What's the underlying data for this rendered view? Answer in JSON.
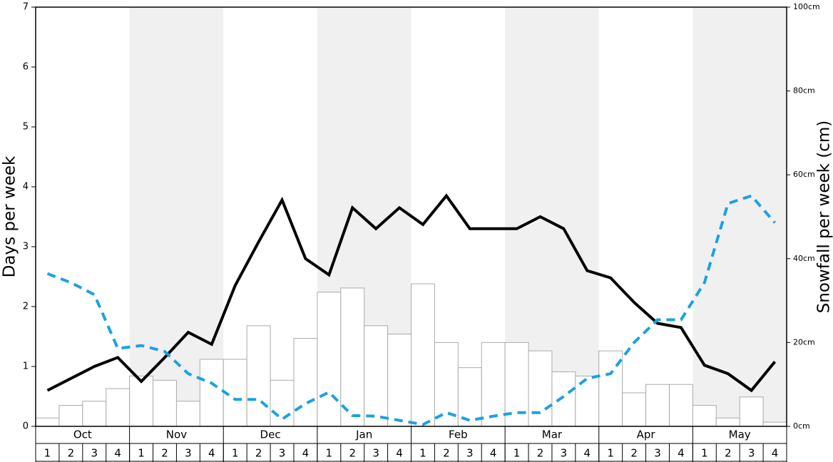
{
  "chart_data": {
    "type": "combo",
    "ylabel": "Days per week",
    "y2label": "Snowfall per week (cm)",
    "months": [
      "Oct",
      "Nov",
      "Dec",
      "Jan",
      "Feb",
      "Mar",
      "Apr",
      "May"
    ],
    "categories": [
      1,
      2,
      3,
      4,
      1,
      2,
      3,
      4,
      1,
      2,
      3,
      4,
      1,
      2,
      3,
      4,
      1,
      2,
      3,
      4,
      1,
      2,
      3,
      4,
      1,
      2,
      3,
      4,
      1,
      2,
      3,
      4
    ],
    "ylim": [
      0,
      7
    ],
    "yticks": [
      0,
      1,
      2,
      3,
      4,
      5,
      6,
      7
    ],
    "y2lim": [
      0,
      100
    ],
    "y2ticks": [
      {
        "value": 0,
        "label": "0cm"
      },
      {
        "value": 20,
        "label": "20cm"
      },
      {
        "value": 40,
        "label": "40cm"
      },
      {
        "value": 60,
        "label": "60cm"
      },
      {
        "value": 80,
        "label": "80cm"
      },
      {
        "value": 100,
        "label": "100cm"
      }
    ],
    "series": [
      {
        "type": "bar",
        "axis": "y2",
        "color": "#ffffff",
        "edge": "#aaaaaa",
        "values": [
          2,
          5,
          6,
          9,
          12,
          11,
          6,
          16,
          16,
          24,
          11,
          21,
          32,
          33,
          24,
          22,
          34,
          20,
          14,
          20,
          20,
          18,
          13,
          12,
          18,
          8,
          10,
          10,
          5,
          2,
          7,
          1
        ]
      },
      {
        "type": "line",
        "color": "#000000",
        "dashed": false,
        "values": [
          0.6,
          0.8,
          1.0,
          1.15,
          0.75,
          1.15,
          1.57,
          1.37,
          2.35,
          3.08,
          3.78,
          2.8,
          2.53,
          3.65,
          3.3,
          3.65,
          3.37,
          3.85,
          3.3,
          3.3,
          3.3,
          3.5,
          3.3,
          2.6,
          2.48,
          2.07,
          1.72,
          1.65,
          1.02,
          0.88,
          0.6,
          1.08
        ]
      },
      {
        "type": "line",
        "color": "#1ba1e2",
        "dashed": true,
        "values": [
          2.55,
          2.4,
          2.2,
          1.3,
          1.35,
          1.25,
          0.88,
          0.72,
          0.45,
          0.45,
          0.12,
          0.38,
          0.57,
          0.18,
          0.17,
          0.1,
          0.03,
          0.23,
          0.1,
          0.17,
          0.23,
          0.23,
          0.5,
          0.8,
          0.88,
          1.4,
          1.78,
          1.78,
          2.4,
          3.72,
          3.85,
          3.4
        ]
      }
    ]
  }
}
